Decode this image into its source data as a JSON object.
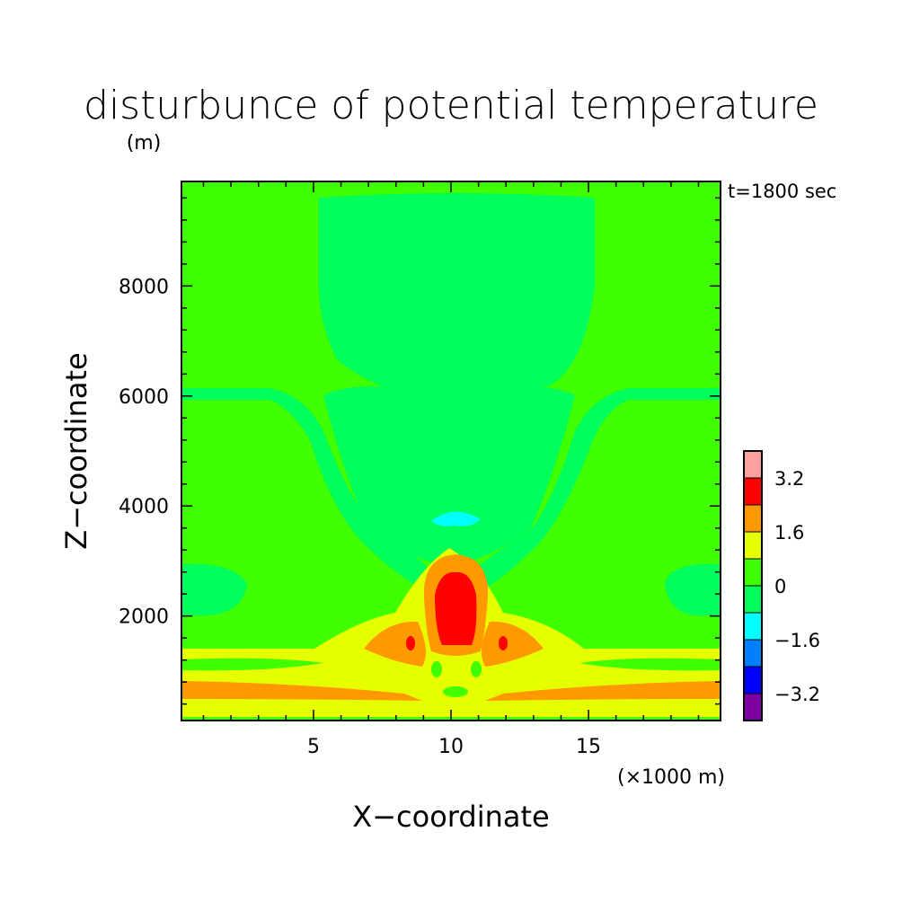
{
  "chart_data": {
    "type": "heatmap",
    "title": "disturbunce of potential temperature",
    "xlabel": "X−coordinate",
    "ylabel": "Z−coordinate",
    "x_unit": "(×1000 m)",
    "y_unit": "(m)",
    "annotation": "t=1800 sec",
    "xlim": [
      0.2,
      19.8
    ],
    "ylim": [
      100,
      9900
    ],
    "x_ticks": [
      5,
      10,
      15
    ],
    "x_tick_labels": [
      "5",
      "10",
      "15"
    ],
    "y_ticks": [
      2000,
      4000,
      6000,
      8000
    ],
    "y_tick_labels": [
      "2000",
      "4000",
      "6000",
      "8000"
    ],
    "colorbar": {
      "bins": [
        {
          "color": "#7f00a0"
        },
        {
          "color": "#0000ff"
        },
        {
          "color": "#0080ff"
        },
        {
          "color": "#00ffff"
        },
        {
          "color": "#00ff5a"
        },
        {
          "color": "#40ff00"
        },
        {
          "color": "#e6ff00"
        },
        {
          "color": "#ff9900"
        },
        {
          "color": "#ff0000"
        },
        {
          "color": "#ffa0a0"
        }
      ],
      "labels": [
        "−3.2",
        "−1.6",
        "0",
        "1.6",
        "3.2"
      ]
    }
  }
}
